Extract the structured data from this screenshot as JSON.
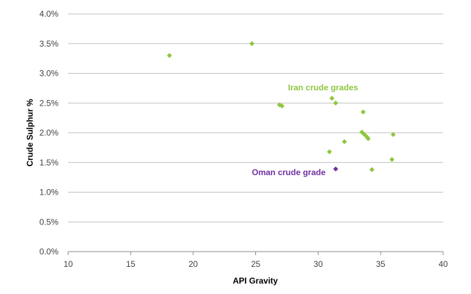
{
  "chart_data": {
    "type": "scatter",
    "xlabel": "API Gravity",
    "ylabel": "Crude Sulphur %",
    "xlim": [
      10,
      40
    ],
    "ylim": [
      0,
      4.0
    ],
    "x_ticks": [
      10,
      15,
      20,
      25,
      30,
      35,
      40
    ],
    "x_tick_labels": [
      "10",
      "15",
      "20",
      "25",
      "30",
      "35",
      "40"
    ],
    "y_ticks": [
      0,
      0.5,
      1.0,
      1.5,
      2.0,
      2.5,
      3.0,
      3.5,
      4.0
    ],
    "y_tick_labels": [
      "0.0%",
      "0.5%",
      "1.0%",
      "1.5%",
      "2.0%",
      "2.5%",
      "3.0%",
      "3.5%",
      "4.0%"
    ],
    "grid": "horizontal",
    "series": [
      {
        "name": "Iran crude grades",
        "color": "#8dc63f",
        "points": [
          [
            18.1,
            3.3
          ],
          [
            24.7,
            3.5
          ],
          [
            26.9,
            2.47
          ],
          [
            27.1,
            2.45
          ],
          [
            31.1,
            2.58
          ],
          [
            31.4,
            2.5
          ],
          [
            33.6,
            2.35
          ],
          [
            33.5,
            2.01
          ],
          [
            33.7,
            1.97
          ],
          [
            33.9,
            1.93
          ],
          [
            34.0,
            1.9
          ],
          [
            36.0,
            1.97
          ],
          [
            32.1,
            1.85
          ],
          [
            30.9,
            1.68
          ],
          [
            35.9,
            1.55
          ],
          [
            34.3,
            1.38
          ]
        ]
      },
      {
        "name": "Oman crude grade",
        "color": "#7030a0",
        "points": [
          [
            31.4,
            1.39
          ]
        ]
      }
    ]
  }
}
